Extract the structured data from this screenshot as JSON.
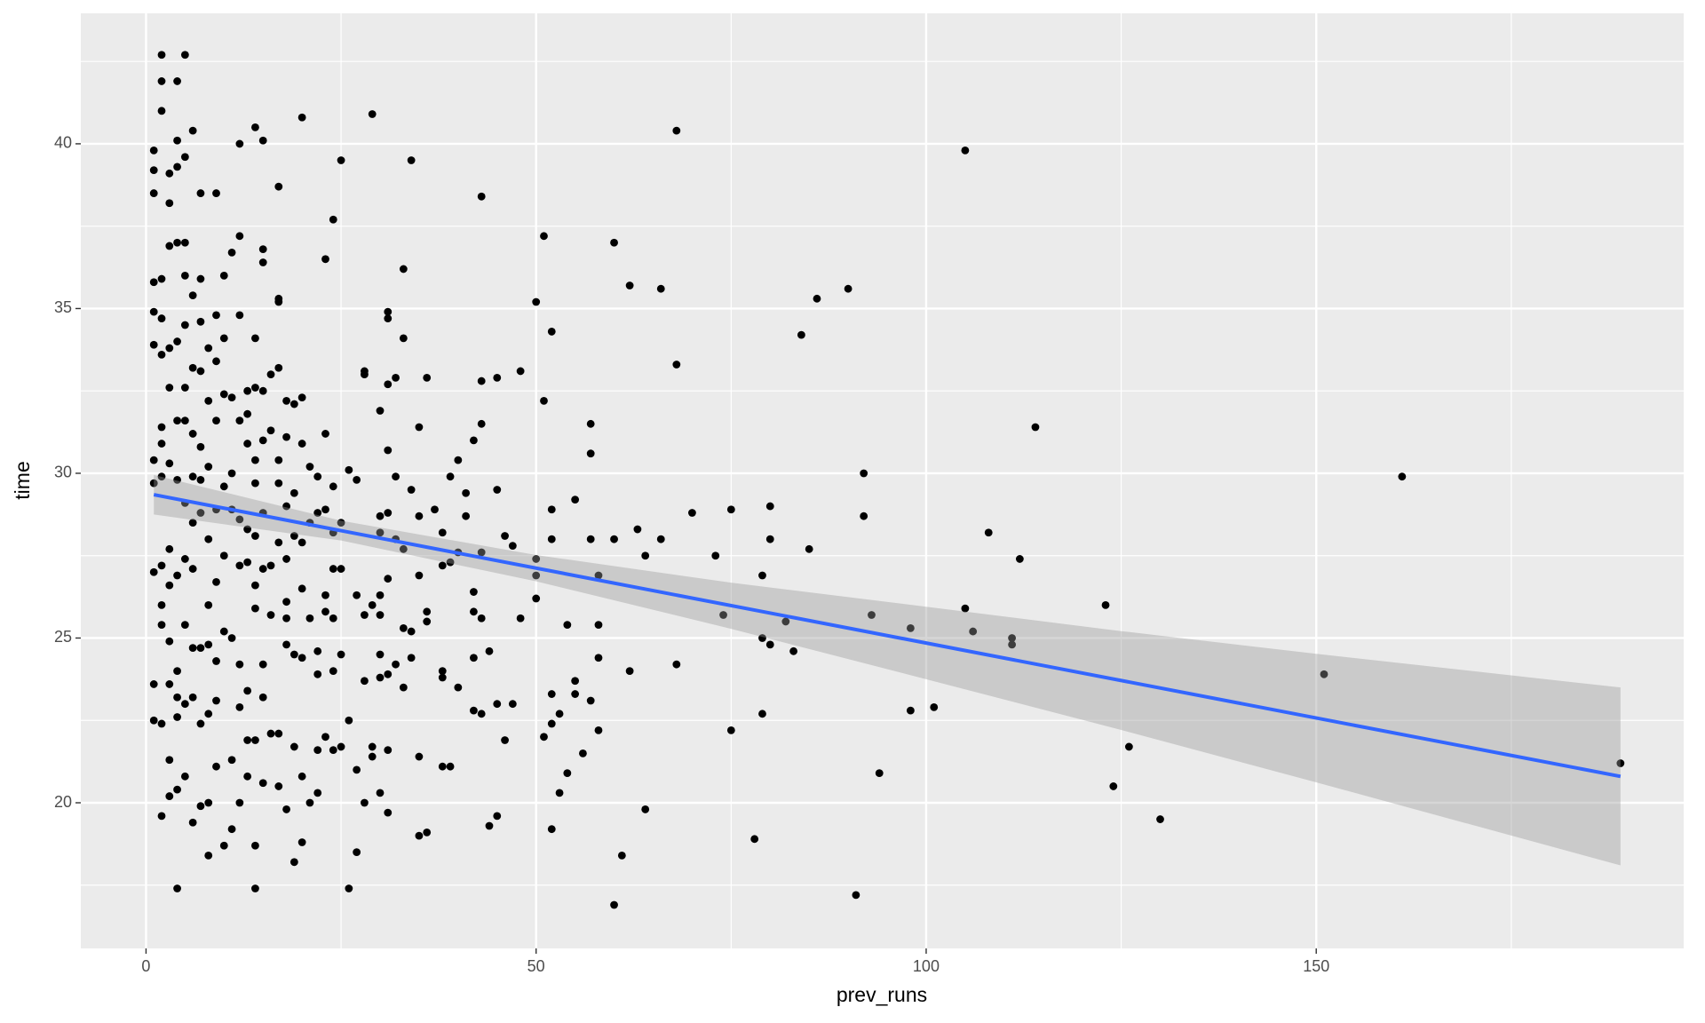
{
  "chart_data": {
    "type": "scatter",
    "x_label": "prev_runs",
    "y_label": "time",
    "xlim": [
      -8.36,
      197.1
    ],
    "ylim": [
      15.58,
      43.96
    ],
    "xticks": [
      0,
      50,
      100,
      150
    ],
    "yticks": [
      20,
      25,
      30,
      35,
      40
    ],
    "grid": true,
    "color": "#000000",
    "x": [
      105,
      114,
      161,
      108,
      112,
      123,
      151,
      189,
      126,
      124,
      130,
      91,
      94,
      98,
      101,
      92,
      92,
      93,
      98,
      105,
      106,
      111,
      111,
      90,
      86,
      84,
      85,
      83,
      82,
      80,
      79,
      79,
      80,
      80,
      75,
      75,
      74,
      73,
      79,
      78,
      70,
      68,
      68,
      68,
      66,
      66,
      64,
      63,
      64,
      62,
      62,
      60,
      60,
      61,
      60,
      57,
      57,
      57,
      58,
      58,
      58,
      58,
      57,
      56,
      55,
      55,
      55,
      54,
      54,
      53,
      53,
      52,
      52,
      52,
      52,
      52,
      52,
      51,
      51,
      51,
      50,
      50,
      50,
      50,
      48,
      48,
      47,
      47,
      46,
      46,
      45,
      45,
      45,
      45,
      44,
      44,
      43,
      43,
      43,
      43,
      43,
      43,
      42,
      42,
      42,
      42,
      42,
      41,
      41,
      40,
      40,
      40,
      39,
      39,
      38,
      38,
      38,
      38,
      38,
      39,
      37,
      36,
      36,
      36,
      36,
      35,
      35,
      35,
      35,
      35,
      34,
      34,
      34,
      34,
      33,
      33,
      33,
      33,
      33,
      32,
      32,
      32,
      32,
      31,
      31,
      31,
      31,
      31,
      31,
      31,
      31,
      31,
      30,
      30,
      30,
      30,
      30,
      30,
      30,
      30,
      29,
      29,
      29,
      29,
      28,
      28,
      28,
      28,
      28,
      27,
      27,
      27,
      27,
      26,
      26,
      26,
      25,
      25,
      25,
      25,
      25,
      24,
      24,
      24,
      24,
      24,
      24,
      24,
      23,
      23,
      23,
      23,
      23,
      23,
      22,
      22,
      22,
      22,
      22,
      22,
      21,
      21,
      21,
      21,
      20,
      20,
      20,
      20,
      20,
      20,
      20,
      20,
      19,
      19,
      19,
      19,
      19,
      19,
      18,
      18,
      18,
      18,
      18,
      18,
      18,
      18,
      17,
      17,
      17,
      17,
      17,
      17,
      17,
      17,
      17,
      16,
      16,
      16,
      16,
      16,
      15,
      15,
      15,
      15,
      15,
      15,
      15,
      15,
      15,
      15,
      14,
      14,
      14,
      14,
      14,
      14,
      14,
      14,
      14,
      14,
      14,
      13,
      13,
      13,
      13,
      13,
      13,
      13,
      13,
      12,
      12,
      12,
      12,
      12,
      12,
      12,
      12,
      12,
      11,
      11,
      11,
      11,
      11,
      11,
      11,
      10,
      10,
      10,
      10,
      10,
      10,
      10,
      9,
      9,
      9,
      9,
      9,
      9,
      9,
      9,
      9,
      8,
      8,
      8,
      8,
      8,
      8,
      8,
      8,
      8,
      7,
      7,
      7,
      7,
      7,
      7,
      7,
      7,
      7,
      7,
      6,
      6,
      6,
      6,
      6,
      6,
      6,
      6,
      6,
      6,
      5,
      5,
      5,
      5,
      5,
      5,
      5,
      5,
      5,
      5,
      5,
      5,
      4,
      4,
      4,
      4,
      4,
      4,
      4,
      4,
      4,
      4,
      4,
      4,
      4,
      3,
      3,
      3,
      3,
      3,
      3,
      3,
      3,
      3,
      3,
      3,
      3,
      2,
      2,
      2,
      2,
      2,
      2,
      2,
      2,
      2,
      2,
      2,
      2,
      2,
      2,
      1,
      1,
      1,
      1,
      1,
      1,
      1,
      1,
      1,
      1,
      1
    ],
    "values": [
      39.8,
      31.4,
      29.9,
      28.2,
      27.4,
      26.0,
      23.9,
      21.2,
      21.7,
      20.5,
      19.5,
      17.2,
      20.9,
      22.8,
      22.9,
      30.0,
      28.7,
      25.7,
      25.3,
      25.9,
      25.2,
      25.0,
      24.8,
      35.6,
      35.3,
      34.2,
      27.7,
      24.6,
      25.5,
      24.8,
      25.0,
      26.9,
      28.0,
      29.0,
      28.9,
      22.2,
      25.7,
      27.5,
      22.7,
      18.9,
      28.8,
      40.4,
      33.3,
      24.2,
      35.6,
      28.0,
      27.5,
      28.3,
      19.8,
      24.0,
      35.7,
      37.0,
      28.0,
      18.4,
      16.9,
      31.5,
      30.6,
      28.0,
      26.9,
      25.4,
      24.4,
      22.2,
      23.1,
      21.5,
      29.2,
      23.7,
      23.3,
      25.4,
      20.9,
      22.7,
      20.3,
      34.3,
      28.9,
      28.0,
      23.3,
      22.4,
      19.2,
      37.2,
      32.2,
      22.0,
      35.2,
      27.4,
      26.9,
      26.2,
      33.1,
      25.6,
      27.8,
      23.0,
      21.9,
      28.1,
      29.5,
      32.9,
      23.0,
      19.6,
      24.6,
      19.3,
      38.4,
      32.8,
      31.5,
      27.6,
      25.6,
      22.7,
      31.0,
      26.4,
      25.8,
      24.4,
      22.8,
      28.7,
      29.4,
      30.4,
      27.6,
      23.5,
      29.9,
      27.3,
      28.2,
      27.2,
      24.0,
      23.8,
      21.1,
      21.1,
      28.9,
      32.9,
      25.5,
      25.8,
      19.1,
      31.4,
      28.7,
      26.9,
      21.4,
      19.0,
      39.5,
      29.5,
      25.2,
      24.4,
      36.2,
      34.1,
      27.7,
      25.3,
      23.5,
      32.9,
      29.9,
      28.0,
      24.2,
      34.9,
      34.7,
      32.7,
      30.7,
      28.8,
      26.8,
      23.9,
      21.6,
      19.7,
      31.9,
      28.7,
      28.2,
      26.3,
      25.7,
      24.5,
      23.8,
      20.3,
      40.9,
      26.0,
      21.7,
      21.4,
      33.1,
      33.0,
      25.7,
      23.7,
      20.0,
      29.8,
      26.3,
      21.0,
      18.5,
      30.1,
      22.5,
      17.4,
      39.5,
      28.5,
      27.1,
      24.5,
      21.7,
      37.7,
      29.6,
      28.2,
      27.1,
      25.6,
      24.0,
      21.6,
      36.5,
      31.2,
      28.9,
      26.3,
      25.8,
      22.0,
      29.9,
      28.8,
      24.6,
      23.9,
      21.6,
      20.3,
      30.2,
      28.5,
      25.6,
      20.0,
      40.8,
      32.3,
      30.9,
      27.9,
      26.5,
      24.4,
      20.8,
      18.8,
      32.1,
      29.4,
      28.1,
      24.5,
      21.7,
      18.2,
      32.2,
      31.1,
      29.0,
      27.4,
      26.1,
      25.6,
      24.8,
      19.8,
      38.7,
      35.3,
      35.2,
      33.2,
      30.4,
      29.7,
      27.9,
      22.1,
      20.5,
      33.0,
      31.3,
      27.2,
      25.7,
      22.1,
      40.1,
      36.8,
      36.4,
      32.5,
      31.0,
      28.8,
      27.1,
      24.2,
      23.2,
      20.6,
      40.5,
      34.1,
      32.6,
      30.4,
      29.7,
      28.1,
      26.6,
      25.9,
      21.9,
      18.7,
      17.4,
      32.5,
      31.8,
      30.9,
      28.3,
      27.3,
      23.4,
      21.9,
      20.8,
      40.0,
      37.2,
      34.8,
      31.6,
      28.6,
      27.2,
      24.2,
      22.9,
      20.0,
      36.7,
      32.3,
      30.0,
      28.9,
      25.0,
      21.3,
      19.2,
      36.0,
      34.1,
      32.4,
      29.6,
      27.5,
      25.2,
      18.7,
      38.5,
      34.8,
      33.4,
      31.6,
      28.9,
      26.7,
      24.3,
      23.1,
      21.1,
      33.8,
      32.2,
      30.2,
      28.0,
      26.0,
      24.8,
      22.7,
      20.0,
      18.4,
      38.5,
      35.9,
      34.6,
      33.1,
      30.8,
      29.8,
      28.8,
      24.7,
      22.4,
      19.9,
      40.4,
      35.4,
      33.2,
      31.2,
      29.9,
      28.5,
      27.1,
      24.7,
      23.2,
      19.4,
      42.7,
      39.6,
      37.0,
      36.0,
      34.5,
      32.6,
      31.6,
      29.1,
      27.4,
      25.4,
      23.0,
      20.8,
      41.9,
      40.1,
      39.3,
      37.0,
      34.0,
      31.6,
      29.8,
      26.9,
      24.0,
      23.2,
      22.6,
      20.4,
      17.4,
      39.1,
      38.2,
      36.9,
      33.8,
      32.6,
      30.3,
      27.7,
      26.6,
      24.9,
      23.6,
      21.3,
      20.2,
      42.7,
      41.9,
      41.0,
      35.9,
      34.7,
      33.6,
      31.4,
      30.9,
      29.9,
      27.2,
      26.0,
      25.4,
      22.4,
      19.6,
      39.8,
      39.2,
      38.5,
      35.8,
      34.9,
      33.9,
      30.4,
      29.7,
      27.0,
      23.6,
      22.5
    ],
    "fit": {
      "color": "#3366ff",
      "x": [
        1,
        189
      ],
      "values": [
        29.35,
        20.8
      ]
    },
    "band": {
      "color": "#999999",
      "x": [
        1,
        25,
        50,
        75,
        100,
        125,
        150,
        189
      ],
      "lower": [
        28.75,
        27.96,
        26.72,
        25.28,
        23.75,
        22.21,
        20.62,
        18.1
      ],
      "upper": [
        29.95,
        28.56,
        27.52,
        26.68,
        25.95,
        25.21,
        24.52,
        23.5
      ]
    }
  }
}
